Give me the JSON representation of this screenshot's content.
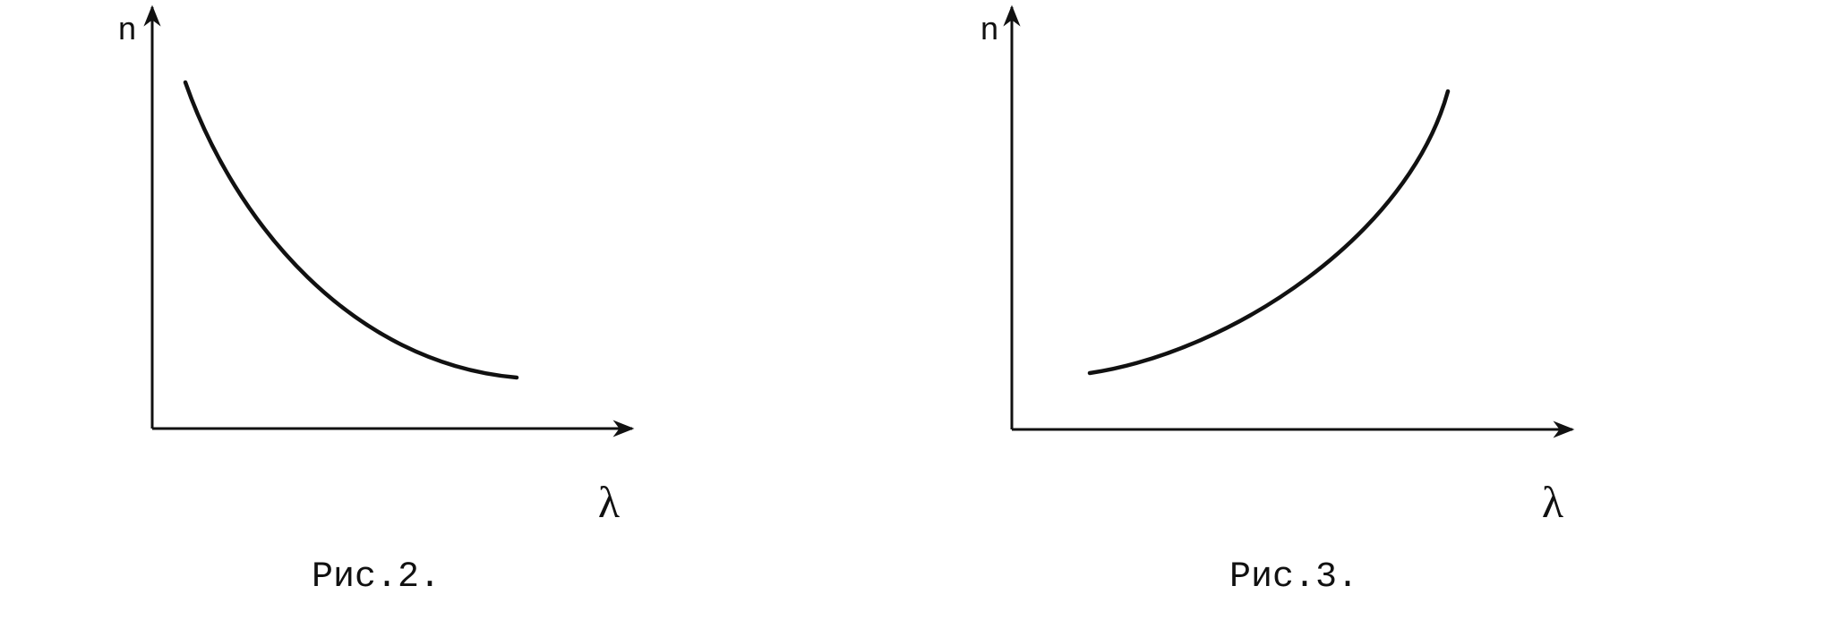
{
  "figures": [
    {
      "y_label": "n",
      "x_label": "λ",
      "caption": "Рис.2."
    },
    {
      "y_label": "n",
      "x_label": "λ",
      "caption": "Рис.3."
    }
  ]
}
